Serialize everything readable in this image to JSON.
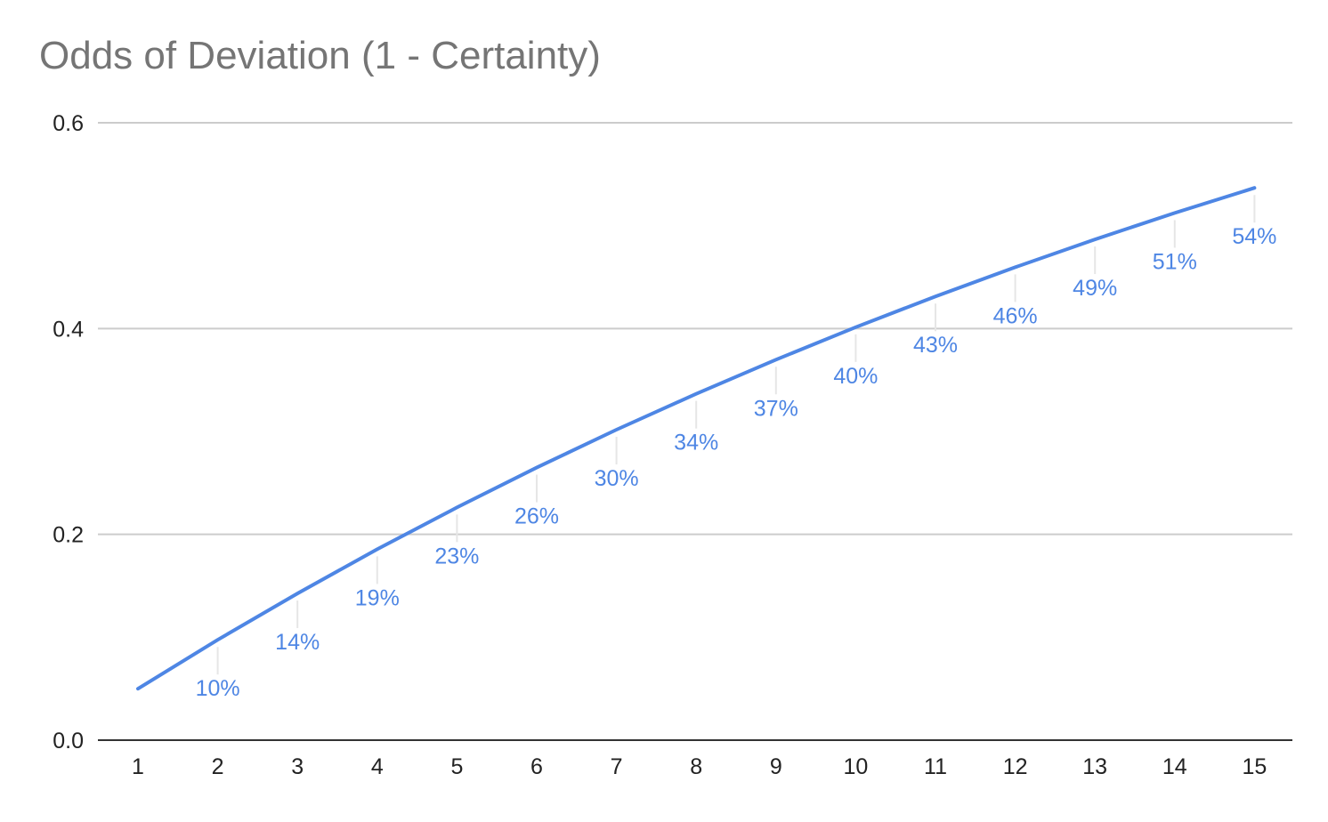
{
  "chart_data": {
    "type": "line",
    "title": "Odds of Deviation (1 - Certainty)",
    "xlabel": "",
    "ylabel": "",
    "x": [
      1,
      2,
      3,
      4,
      5,
      6,
      7,
      8,
      9,
      10,
      11,
      12,
      13,
      14,
      15
    ],
    "ylim": [
      0,
      0.6
    ],
    "yticks": [
      "0.0",
      "0.2",
      "0.4",
      "0.6"
    ],
    "grid": true,
    "series": [
      {
        "values": [
          0.05,
          0.0975,
          0.1426,
          0.1855,
          0.2262,
          0.2649,
          0.3017,
          0.3366,
          0.3698,
          0.4013,
          0.4312,
          0.4596,
          0.4867,
          0.5123,
          0.5367
        ],
        "data_labels": [
          "",
          "10%",
          "14%",
          "19%",
          "23%",
          "26%",
          "30%",
          "34%",
          "37%",
          "40%",
          "43%",
          "46%",
          "49%",
          "51%",
          "54%"
        ],
        "color": "#4e86e4"
      }
    ]
  }
}
